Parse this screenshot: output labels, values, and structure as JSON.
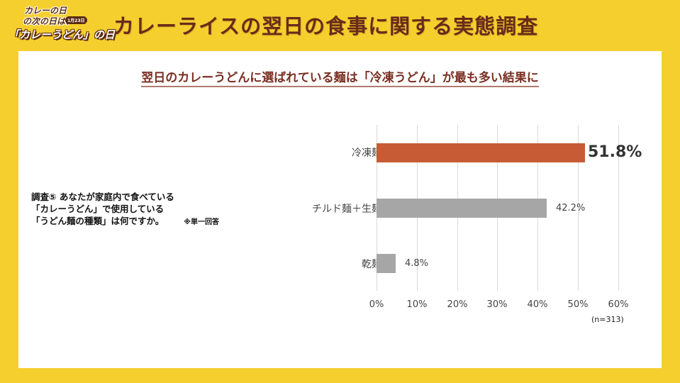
{
  "logo": {
    "line1": "カレーの日",
    "line2": "の次の日は、",
    "badge": "1月23日",
    "line3": "「カレーうどん」の日"
  },
  "header": {
    "title": "カレーライスの翌日の食事に関する実態調査"
  },
  "panel": {
    "subtitle": "翌日のカレーうどんに選ばれている麺は「冷凍うどん」が最も多い結果に",
    "question": {
      "line1": "調査⑤ あなたが家庭内で食べている",
      "line2": "「カレーうどん」で使用している",
      "line3": "「うどん麺の種類」は何ですか。",
      "note": "※単一回答"
    }
  },
  "colors": {
    "background": "#f5cf2e",
    "title": "#6b2a1a",
    "highlight_bar": "#c75b35",
    "other_bar": "#a6a6a6",
    "gridline": "#d9d9d9"
  },
  "chart_data": {
    "type": "bar",
    "orientation": "horizontal",
    "title": "翌日のカレーうどんに選ばれている麺は「冷凍うどん」が最も多い結果に",
    "categories": [
      "冷凍麺",
      "チルド麺＋生麺",
      "乾麺"
    ],
    "values": [
      51.8,
      42.2,
      4.8
    ],
    "value_labels": [
      "51.8%",
      "42.2%",
      "4.8%"
    ],
    "bar_colors": [
      "#c75b35",
      "#a6a6a6",
      "#a6a6a6"
    ],
    "xlabel": "",
    "ylabel": "",
    "xlim": [
      0,
      60
    ],
    "x_ticks": [
      "0%",
      "10%",
      "20%",
      "30%",
      "40%",
      "50%",
      "60%"
    ],
    "grid": "vertical",
    "legend": "none",
    "annotation": "(n=313)"
  }
}
